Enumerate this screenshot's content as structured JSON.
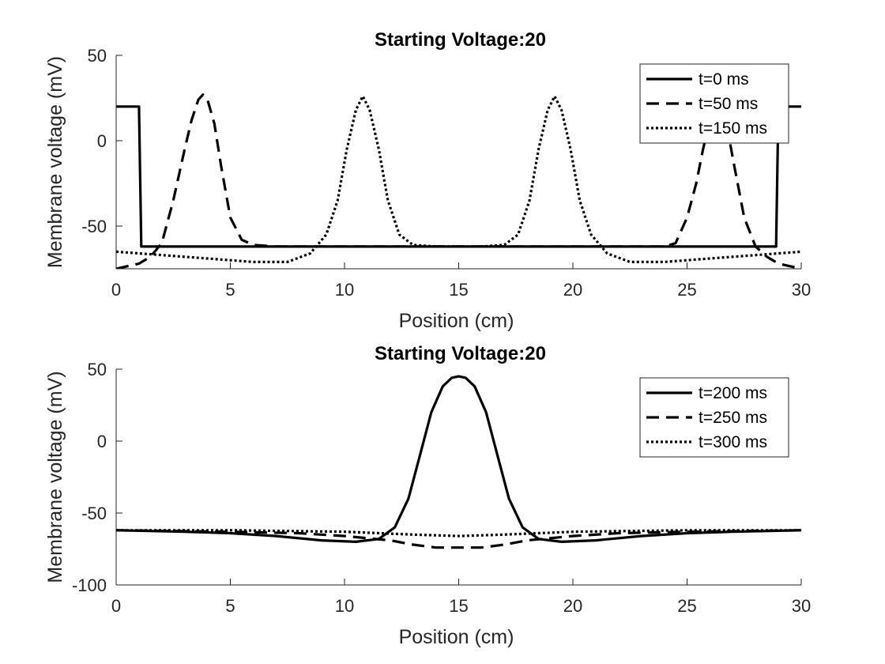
{
  "chart_data": [
    {
      "type": "line",
      "title": "Starting Voltage:20",
      "xlabel": "Position (cm)",
      "ylabel": "Membrane voltage (mV)",
      "xlim": [
        0,
        30
      ],
      "ylim": [
        -75,
        50
      ],
      "xticks": [
        0,
        5,
        10,
        15,
        20,
        25,
        30
      ],
      "yticks": [
        -50,
        0,
        50
      ],
      "grid": false,
      "legend_position": "top-right",
      "series": [
        {
          "name": "t=0 ms",
          "style": "solid",
          "x": [
            0,
            0.9,
            1.0,
            1.1,
            28.9,
            29.0,
            29.1,
            30
          ],
          "y": [
            20,
            20,
            20,
            -62,
            -62,
            20,
            20,
            20
          ]
        },
        {
          "name": "t=50 ms",
          "style": "dashed",
          "x": [
            0,
            1,
            1.5,
            2,
            2.5,
            3,
            3.3,
            3.6,
            3.8,
            4.0,
            4.3,
            4.6,
            5,
            5.5,
            6,
            7,
            8,
            10,
            15,
            20,
            22,
            23,
            24,
            24.5,
            25,
            25.4,
            25.7,
            26.0,
            26.2,
            26.4,
            26.7,
            27.0,
            27.5,
            28,
            28.5,
            29,
            30
          ],
          "y": [
            -75,
            -72,
            -68,
            -60,
            -35,
            -5,
            12,
            24,
            27,
            24,
            10,
            -15,
            -45,
            -58,
            -61,
            -62,
            -62,
            -62,
            -62,
            -62,
            -62,
            -62,
            -62,
            -60,
            -45,
            -25,
            -5,
            12,
            20,
            22,
            12,
            -10,
            -45,
            -62,
            -68,
            -72,
            -75
          ]
        },
        {
          "name": "t=150 ms",
          "style": "dotted",
          "x": [
            0,
            2,
            4,
            6,
            7.5,
            8.5,
            9.2,
            9.7,
            10.1,
            10.5,
            10.8,
            11.1,
            11.5,
            11.9,
            12.4,
            13,
            14,
            15,
            16,
            17,
            17.6,
            18.1,
            18.5,
            18.9,
            19.2,
            19.5,
            19.9,
            20.3,
            20.8,
            21.5,
            22.5,
            24,
            26,
            28,
            30
          ],
          "y": [
            -65,
            -67,
            -69,
            -71,
            -71,
            -66,
            -55,
            -35,
            -5,
            18,
            26,
            18,
            -5,
            -35,
            -55,
            -61,
            -62,
            -62,
            -62,
            -61,
            -55,
            -35,
            -5,
            18,
            26,
            18,
            -5,
            -35,
            -55,
            -66,
            -71,
            -71,
            -69,
            -67,
            -65
          ]
        }
      ]
    },
    {
      "type": "line",
      "title": "Starting Voltage:20",
      "xlabel": "Position (cm)",
      "ylabel": "Membrane voltage (mV)",
      "xlim": [
        0,
        30
      ],
      "ylim": [
        -100,
        50
      ],
      "xticks": [
        0,
        5,
        10,
        15,
        20,
        25,
        30
      ],
      "yticks": [
        -100,
        -50,
        0,
        50
      ],
      "grid": false,
      "legend_position": "top-right",
      "series": [
        {
          "name": "t=200 ms",
          "style": "solid",
          "x": [
            0,
            3,
            5,
            7,
            9,
            10.5,
            11.5,
            12.2,
            12.8,
            13.3,
            13.8,
            14.3,
            14.7,
            15,
            15.3,
            15.7,
            16.2,
            16.7,
            17.2,
            17.8,
            18.5,
            19.5,
            21,
            23,
            25,
            27,
            30
          ],
          "y": [
            -62,
            -63,
            -64,
            -66,
            -69,
            -70,
            -68,
            -60,
            -40,
            -10,
            20,
            38,
            44,
            45,
            44,
            38,
            20,
            -10,
            -40,
            -60,
            -68,
            -70,
            -69,
            -66,
            -64,
            -63,
            -62
          ]
        },
        {
          "name": "t=250 ms",
          "style": "dashed",
          "x": [
            0,
            5,
            8,
            10,
            12,
            13,
            14,
            15,
            16,
            17,
            18,
            20,
            22,
            25,
            30
          ],
          "y": [
            -62,
            -63,
            -64,
            -66,
            -69,
            -72,
            -74,
            -74,
            -74,
            -72,
            -69,
            -66,
            -64,
            -63,
            -62
          ]
        },
        {
          "name": "t=300 ms",
          "style": "dotted",
          "x": [
            0,
            5,
            10,
            13,
            15,
            17,
            20,
            25,
            30
          ],
          "y": [
            -62,
            -62,
            -63,
            -65,
            -66,
            -65,
            -63,
            -62,
            -62
          ]
        }
      ]
    }
  ]
}
